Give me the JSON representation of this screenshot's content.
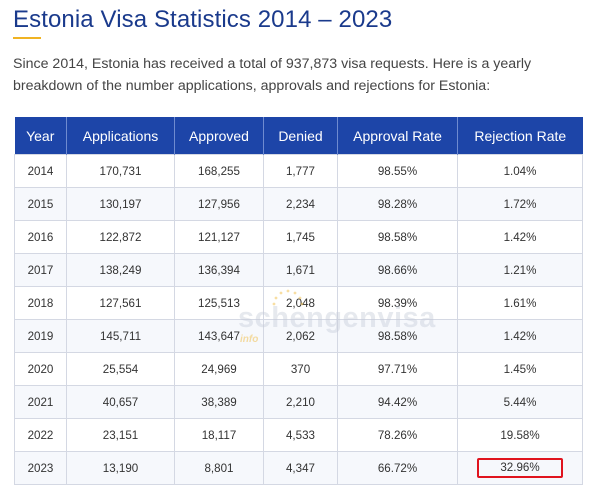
{
  "page": {
    "title": "Estonia Visa Statistics 2014 – 2023",
    "intro": "Since 2014, Estonia has received a total of 937,873 visa requests. Here is a yearly breakdown of the number applications, approvals and rejections for Estonia:"
  },
  "table": {
    "headers": [
      "Year",
      "Applications",
      "Approved",
      "Denied",
      "Approval Rate",
      "Rejection Rate"
    ],
    "rows": [
      [
        "2014",
        "170,731",
        "168,255",
        "1,777",
        "98.55%",
        "1.04%"
      ],
      [
        "2015",
        "130,197",
        "127,956",
        "2,234",
        "98.28%",
        "1.72%"
      ],
      [
        "2016",
        "122,872",
        "121,127",
        "1,745",
        "98.58%",
        "1.42%"
      ],
      [
        "2017",
        "138,249",
        "136,394",
        "1,671",
        "98.66%",
        "1.21%"
      ],
      [
        "2018",
        "127,561",
        "125,513",
        "2,048",
        "98.39%",
        "1.61%"
      ],
      [
        "2019",
        "145,711",
        "143,647",
        "2,062",
        "98.58%",
        "1.42%"
      ],
      [
        "2020",
        "25,554",
        "24,969",
        "370",
        "97.71%",
        "1.45%"
      ],
      [
        "2021",
        "40,657",
        "38,389",
        "2,210",
        "94.42%",
        "5.44%"
      ],
      [
        "2022",
        "23,151",
        "18,117",
        "4,533",
        "78.26%",
        "19.58%"
      ],
      [
        "2023",
        "13,190",
        "8,801",
        "4,347",
        "66.72%",
        "32.96%"
      ]
    ]
  },
  "watermark": {
    "text": "schengenvisa",
    "sub": "info"
  },
  "colors": {
    "title": "#1a3a8c",
    "header_bg": "#1d45a8",
    "accent": "#f0b323",
    "highlight": "#e0141e"
  }
}
